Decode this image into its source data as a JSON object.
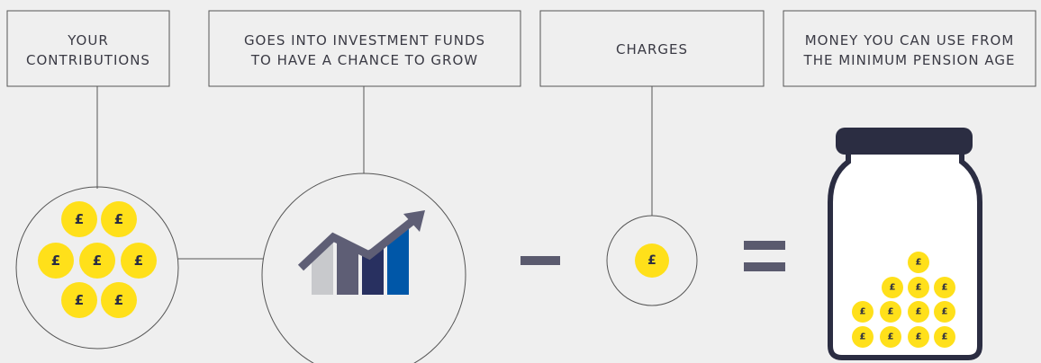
{
  "boxes": [
    {
      "lines": [
        "YOUR",
        "CONTRIBUTIONS"
      ]
    },
    {
      "lines": [
        "GOES INTO INVESTMENT FUNDS",
        "TO HAVE A CHANCE TO GROW"
      ]
    },
    {
      "lines": [
        "CHARGES"
      ]
    },
    {
      "lines": [
        "MONEY YOU CAN USE FROM",
        "THE MINIMUM PENSION AGE"
      ]
    }
  ],
  "coin_symbol": "£"
}
